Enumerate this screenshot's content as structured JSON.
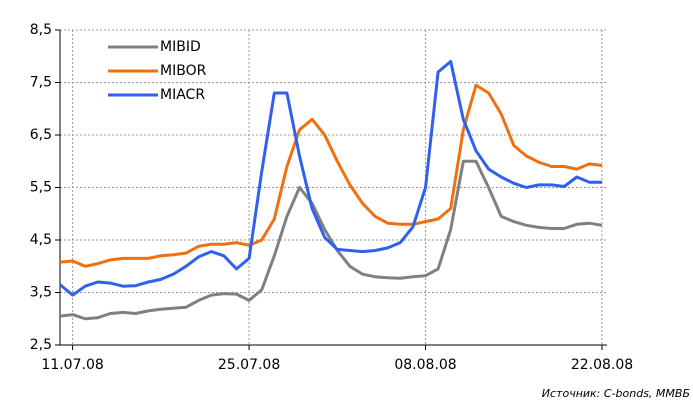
{
  "chart_data": {
    "type": "line",
    "categories": [
      null,
      "11.07.08",
      null,
      null,
      null,
      null,
      null,
      null,
      null,
      null,
      null,
      null,
      null,
      null,
      null,
      "25.07.08",
      null,
      null,
      null,
      null,
      null,
      null,
      null,
      null,
      null,
      null,
      null,
      null,
      null,
      "08.08.08",
      null,
      null,
      null,
      null,
      null,
      null,
      null,
      null,
      null,
      null,
      null,
      null,
      null,
      "22.08.08"
    ],
    "series": [
      {
        "name": "MIBID",
        "color": "#808080",
        "values": [
          3.05,
          3.08,
          3.0,
          3.02,
          3.1,
          3.12,
          3.1,
          3.15,
          3.18,
          3.2,
          3.22,
          3.35,
          3.45,
          3.48,
          3.47,
          3.35,
          3.55,
          4.2,
          4.95,
          5.5,
          5.2,
          4.7,
          4.3,
          4.0,
          3.85,
          3.8,
          3.78,
          3.77,
          3.8,
          3.82,
          3.95,
          4.7,
          6.0,
          6.0,
          5.5,
          4.95,
          4.85,
          4.78,
          4.74,
          4.72,
          4.72,
          4.8,
          4.82,
          4.78
        ]
      },
      {
        "name": "MIBOR",
        "color": "#f07010",
        "values": [
          4.08,
          4.1,
          4.0,
          4.05,
          4.12,
          4.15,
          4.15,
          4.15,
          4.2,
          4.22,
          4.25,
          4.38,
          4.42,
          4.42,
          4.45,
          4.4,
          4.5,
          4.9,
          5.9,
          6.6,
          6.8,
          6.5,
          6.0,
          5.55,
          5.2,
          4.95,
          4.82,
          4.8,
          4.8,
          4.85,
          4.9,
          5.1,
          6.6,
          7.45,
          7.3,
          6.9,
          6.3,
          6.1,
          5.98,
          5.9,
          5.9,
          5.85,
          5.95,
          5.92
        ]
      },
      {
        "name": "MIACR",
        "color": "#3060f0",
        "values": [
          3.65,
          3.45,
          3.62,
          3.7,
          3.68,
          3.62,
          3.63,
          3.7,
          3.75,
          3.85,
          4.0,
          4.18,
          4.28,
          4.2,
          3.95,
          4.15,
          5.8,
          7.3,
          7.3,
          6.1,
          5.1,
          4.55,
          4.32,
          4.3,
          4.28,
          4.3,
          4.35,
          4.45,
          4.75,
          5.5,
          7.7,
          7.9,
          6.8,
          6.2,
          5.85,
          5.7,
          5.58,
          5.5,
          5.55,
          5.55,
          5.52,
          5.7,
          5.6,
          5.6
        ]
      }
    ],
    "ylim": [
      2.5,
      8.5
    ],
    "yticks": [
      {
        "value": 2.5,
        "label": "2,5"
      },
      {
        "value": 3.5,
        "label": "3,5"
      },
      {
        "value": 4.5,
        "label": "4,5"
      },
      {
        "value": 5.5,
        "label": "5,5"
      },
      {
        "value": 6.5,
        "label": "6,5"
      },
      {
        "value": 7.5,
        "label": "7,5"
      },
      {
        "value": 8.5,
        "label": "8,5"
      }
    ],
    "grid": true,
    "legend": "upper left",
    "source": "Источник: C-bonds, ММВБ"
  }
}
